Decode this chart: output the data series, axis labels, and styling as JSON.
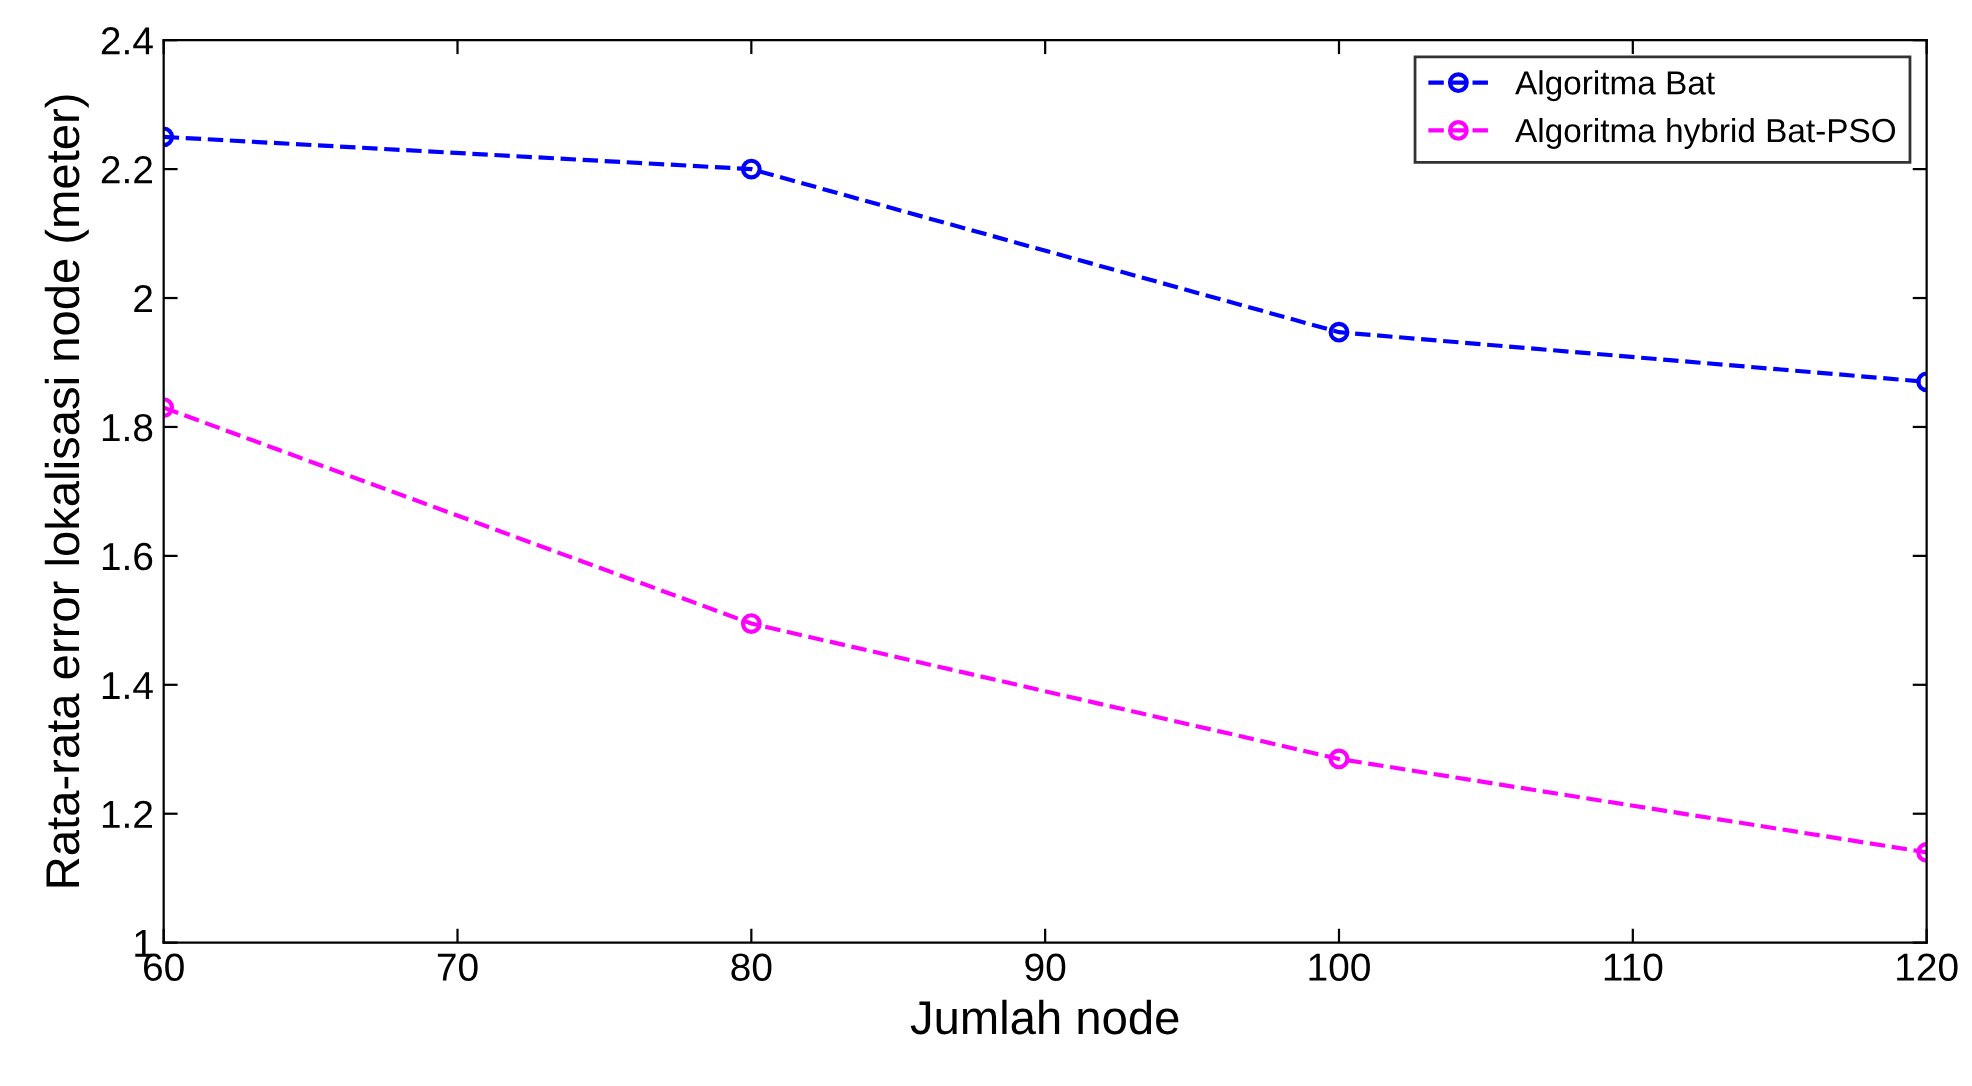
{
  "chart_data": {
    "type": "line",
    "xlabel": "Jumlah node",
    "ylabel": "Rata-rata error lokalisasi node (meter)",
    "x": [
      60,
      80,
      100,
      120
    ],
    "series": [
      {
        "name": "Algoritma Bat",
        "color": "#0000ff",
        "values": [
          2.25,
          2.2,
          1.947,
          1.87
        ]
      },
      {
        "name": "Algoritma hybrid Bat-PSO",
        "color": "#ff00ff",
        "values": [
          1.83,
          1.495,
          1.285,
          1.14
        ]
      }
    ],
    "xlim": [
      60,
      120
    ],
    "xticks": [
      60,
      70,
      80,
      90,
      100,
      110,
      120
    ],
    "ylim": [
      1,
      2.4
    ],
    "yticks": [
      1,
      1.2,
      1.4,
      1.6,
      1.8,
      2,
      2.2,
      2.4
    ],
    "grid": false,
    "legend": "top right",
    "marker": "circle",
    "line_style": "dashed"
  }
}
